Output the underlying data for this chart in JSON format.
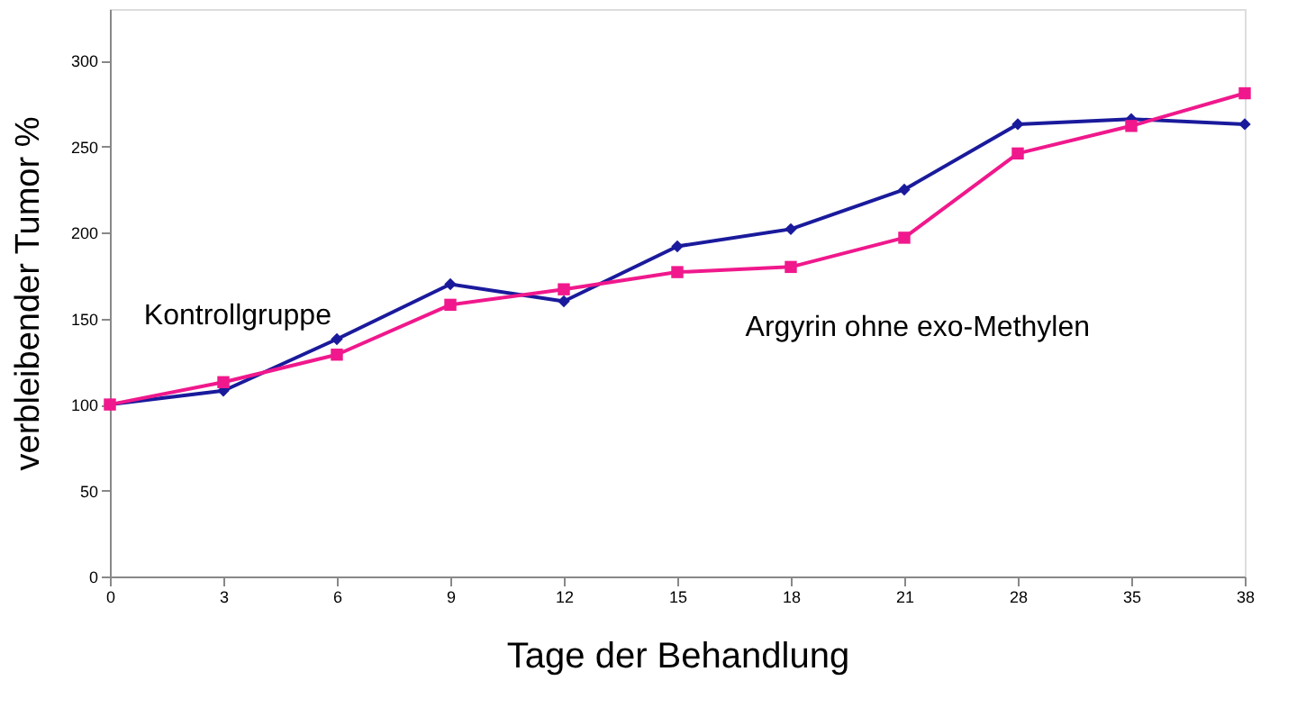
{
  "chart_data": {
    "type": "line",
    "xlabel": "Tage der Behandlung",
    "ylabel": "verbleibender Tumor %",
    "categories": [
      "0",
      "3",
      "6",
      "9",
      "12",
      "15",
      "18",
      "21",
      "28",
      "35",
      "38"
    ],
    "ylim": [
      0,
      330
    ],
    "yticks": [
      0,
      50,
      100,
      150,
      200,
      250,
      300
    ],
    "series": [
      {
        "name": "Kontrollgruppe",
        "color": "#1a1a9c",
        "marker": "diamond",
        "values": [
          100,
          108,
          138,
          170,
          160,
          192,
          202,
          225,
          263,
          266,
          263
        ]
      },
      {
        "name": "Argyrin ohne exo-Methylen",
        "color": "#f0188c",
        "marker": "square",
        "values": [
          100,
          113,
          129,
          158,
          167,
          177,
          180,
          197,
          246,
          262,
          281
        ]
      }
    ]
  }
}
